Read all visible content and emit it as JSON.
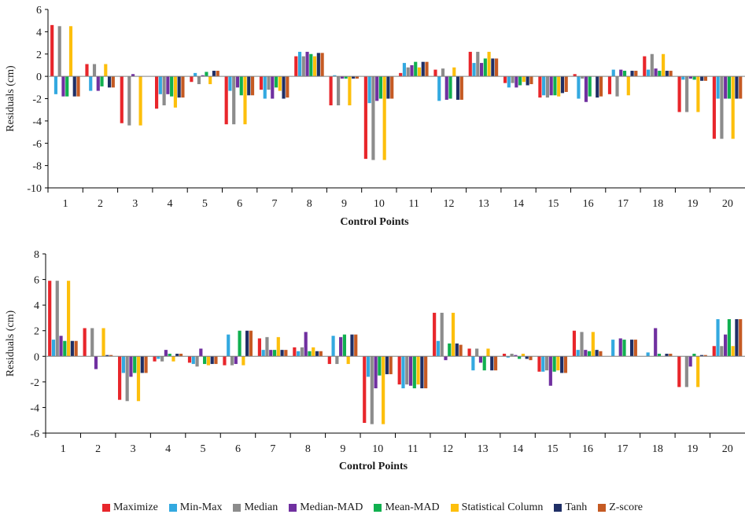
{
  "chart_data": [
    {
      "type": "bar",
      "xlabel": "Control Points",
      "ylabel": "Residuals (cm)",
      "ylim": [
        -10,
        6
      ],
      "yticks": [
        -10,
        -8,
        -6,
        -4,
        -2,
        0,
        2,
        4,
        6
      ],
      "grid": false,
      "categories": [
        "1",
        "2",
        "3",
        "4",
        "5",
        "6",
        "7",
        "8",
        "9",
        "10",
        "11",
        "12",
        "13",
        "14",
        "15",
        "16",
        "17",
        "18",
        "19",
        "20"
      ],
      "series": [
        {
          "name": "Maximize",
          "values": [
            4.6,
            1.1,
            -4.2,
            -2.9,
            -0.5,
            -4.3,
            -1.2,
            1.8,
            -2.6,
            -7.4,
            0.3,
            0.6,
            2.2,
            -0.6,
            -1.9,
            0.2,
            -1.6,
            1.8,
            -3.2,
            -5.6
          ]
        },
        {
          "name": "Min-Max",
          "values": [
            -1.6,
            -1.3,
            0.0,
            -1.6,
            0.3,
            -1.3,
            -2.0,
            2.2,
            0.1,
            -2.4,
            1.2,
            -2.2,
            1.2,
            -1.0,
            -1.7,
            -2.0,
            0.6,
            0.6,
            -0.3,
            -2.0
          ]
        },
        {
          "name": "Median",
          "values": [
            4.5,
            1.1,
            -4.4,
            -2.6,
            -0.7,
            -4.3,
            -1.2,
            1.8,
            -2.6,
            -7.5,
            0.8,
            0.7,
            2.2,
            -0.6,
            -1.9,
            -0.2,
            -1.8,
            2.0,
            -3.2,
            -5.6
          ]
        },
        {
          "name": "Median-MAD",
          "values": [
            -1.8,
            -1.3,
            0.2,
            -1.6,
            0.1,
            -1.0,
            -2.0,
            2.2,
            -0.2,
            -2.2,
            1.0,
            -2.1,
            1.2,
            -1.0,
            -1.7,
            -2.3,
            0.6,
            0.7,
            -0.2,
            -2.0
          ]
        },
        {
          "name": "Mean-MAD",
          "values": [
            -1.8,
            -0.9,
            0.0,
            -1.8,
            0.4,
            -1.7,
            -1.0,
            2.0,
            -0.2,
            -2.0,
            1.3,
            -2.0,
            1.6,
            -0.8,
            -1.7,
            -1.8,
            0.5,
            0.5,
            -0.3,
            -2.0
          ]
        },
        {
          "name": "Statistical Column",
          "values": [
            4.5,
            1.1,
            -4.4,
            -2.8,
            -0.7,
            -4.3,
            -1.3,
            1.8,
            -2.6,
            -7.5,
            0.8,
            0.8,
            2.2,
            -0.5,
            -1.8,
            0.0,
            -1.7,
            2.0,
            -3.2,
            -5.6
          ]
        },
        {
          "name": "Tanh",
          "values": [
            -1.8,
            -1.0,
            0.0,
            -1.9,
            0.5,
            -1.7,
            -2.0,
            2.1,
            -0.2,
            -2.0,
            1.3,
            -2.1,
            1.6,
            -0.8,
            -1.5,
            -1.9,
            0.5,
            0.5,
            -0.4,
            -2.0
          ]
        },
        {
          "name": "Z-score",
          "values": [
            -1.8,
            -1.0,
            0.0,
            -1.9,
            0.5,
            -1.7,
            -1.9,
            2.1,
            -0.2,
            -2.0,
            1.3,
            -2.1,
            1.6,
            -0.7,
            -1.4,
            -1.8,
            0.5,
            0.5,
            -0.4,
            -2.0
          ]
        }
      ]
    },
    {
      "type": "bar",
      "xlabel": "Control Points",
      "ylabel": "Residuals (cm)",
      "ylim": [
        -6,
        8
      ],
      "yticks": [
        -6,
        -4,
        -2,
        0,
        2,
        4,
        6,
        8
      ],
      "grid": false,
      "categories": [
        "1",
        "2",
        "3",
        "4",
        "5",
        "6",
        "7",
        "8",
        "9",
        "10",
        "11",
        "12",
        "13",
        "14",
        "15",
        "16",
        "17",
        "18",
        "19",
        "20"
      ],
      "series": [
        {
          "name": "Maximize",
          "values": [
            5.9,
            2.2,
            -3.4,
            -0.4,
            -0.5,
            -0.7,
            1.4,
            0.7,
            -0.6,
            -5.2,
            -2.2,
            3.4,
            0.6,
            0.2,
            -1.2,
            2.0,
            0.0,
            0.0,
            -2.4,
            0.8
          ]
        },
        {
          "name": "Min-Max",
          "values": [
            1.3,
            0.0,
            -1.3,
            -0.2,
            -0.6,
            1.7,
            0.5,
            0.4,
            1.6,
            -1.6,
            -2.5,
            1.2,
            -1.1,
            -0.1,
            -1.2,
            0.5,
            1.3,
            0.3,
            0.0,
            2.9
          ]
        },
        {
          "name": "Median",
          "values": [
            5.9,
            2.2,
            -3.5,
            -0.4,
            -0.8,
            -0.7,
            1.5,
            0.7,
            -0.6,
            -5.3,
            -2.2,
            3.4,
            0.6,
            0.2,
            -1.1,
            1.9,
            0.0,
            0.0,
            -2.4,
            0.8
          ]
        },
        {
          "name": "Median-MAD",
          "values": [
            1.6,
            -1.0,
            -1.6,
            0.5,
            0.6,
            -0.6,
            0.5,
            1.9,
            1.5,
            -2.5,
            -2.3,
            -0.3,
            -0.5,
            0.1,
            -2.3,
            0.5,
            1.4,
            2.2,
            -0.8,
            1.7
          ]
        },
        {
          "name": "Mean-MAD",
          "values": [
            1.2,
            0.0,
            -1.3,
            0.2,
            -0.6,
            2.0,
            0.5,
            0.4,
            1.7,
            -1.5,
            -2.5,
            1.0,
            -1.1,
            -0.2,
            -1.2,
            0.4,
            1.3,
            0.2,
            0.2,
            2.9
          ]
        },
        {
          "name": "Statistical Column",
          "values": [
            5.9,
            2.2,
            -3.5,
            -0.4,
            -0.7,
            -0.7,
            1.5,
            0.7,
            -0.6,
            -5.3,
            -2.2,
            3.4,
            0.6,
            0.2,
            -1.1,
            1.9,
            0.0,
            0.0,
            -2.4,
            0.8
          ]
        },
        {
          "name": "Tanh",
          "values": [
            1.2,
            0.1,
            -1.3,
            0.2,
            -0.6,
            2.0,
            0.5,
            0.4,
            1.7,
            -1.4,
            -2.5,
            1.0,
            -1.1,
            -0.2,
            -1.3,
            0.5,
            1.3,
            0.2,
            0.1,
            2.9
          ]
        },
        {
          "name": "Z-score",
          "values": [
            1.2,
            0.1,
            -1.3,
            0.2,
            -0.6,
            2.0,
            0.5,
            0.4,
            1.7,
            -1.4,
            -2.5,
            0.9,
            -1.1,
            -0.3,
            -1.3,
            0.4,
            1.3,
            0.2,
            0.1,
            2.9
          ]
        }
      ]
    }
  ],
  "colors": {
    "Maximize": "#e8262b",
    "Min-Max": "#33a9e0",
    "Median": "#8c8c8c",
    "Median-MAD": "#7030a0",
    "Mean-MAD": "#10b04f",
    "Statistical Column": "#fdbf0c",
    "Tanh": "#1f2f66",
    "Z-score": "#c55a23"
  },
  "legend": {
    "entries": [
      "Maximize",
      "Min-Max",
      "Median",
      "Median-MAD",
      "Mean-MAD",
      "Statistical Column",
      "Tanh",
      "Z-score"
    ]
  }
}
